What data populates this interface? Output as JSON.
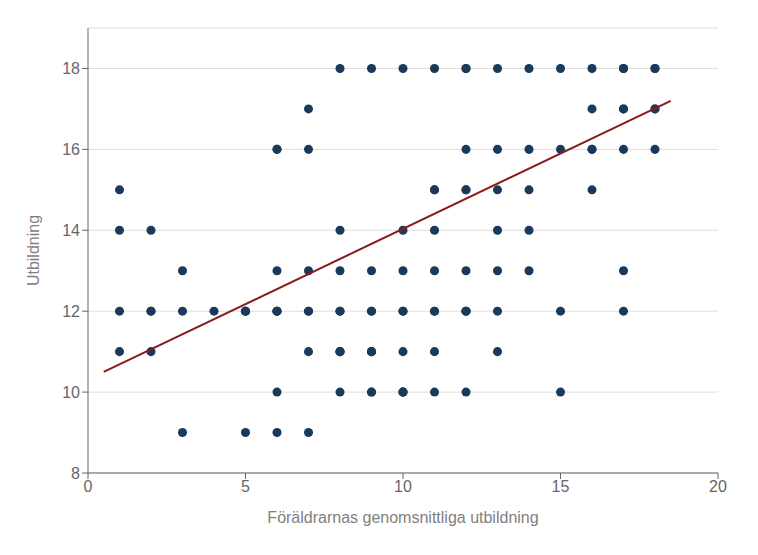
{
  "chart_data": {
    "type": "scatter",
    "xlabel": "Föräldrarnas genomsnittliga utbildning",
    "ylabel": "Utbildning",
    "xlim": [
      0,
      20
    ],
    "ylim": [
      8,
      19
    ],
    "xticks": [
      0,
      5,
      10,
      15,
      20
    ],
    "yticks": [
      8,
      10,
      12,
      14,
      16,
      18
    ],
    "grid": "y",
    "series": [
      {
        "type": "scatter",
        "marker": "circle",
        "color": "#1a3a5c",
        "x": [
          1,
          1,
          1,
          1,
          2,
          2,
          2,
          2,
          3,
          3,
          3,
          4,
          5,
          5,
          5,
          5,
          6,
          6,
          6,
          6,
          6,
          6,
          6,
          6,
          7,
          7,
          7,
          7,
          7,
          7,
          7,
          8,
          8,
          8,
          8,
          8,
          8,
          8,
          8,
          8,
          9,
          9,
          9,
          9,
          9,
          9,
          9,
          9,
          9,
          10,
          10,
          10,
          10,
          10,
          10,
          10,
          10,
          10,
          11,
          11,
          11,
          11,
          11,
          11,
          11,
          11,
          11,
          12,
          12,
          12,
          12,
          12,
          12,
          12,
          12,
          12,
          12,
          13,
          13,
          13,
          13,
          13,
          13,
          13,
          14,
          14,
          14,
          14,
          14,
          15,
          15,
          15,
          15,
          16,
          16,
          16,
          16,
          16,
          17,
          17,
          17,
          17,
          17,
          17,
          17,
          18,
          18,
          18,
          18,
          18
        ],
        "values": [
          11,
          12,
          14,
          15,
          11,
          12,
          12,
          14,
          9,
          12,
          13,
          12,
          9,
          12,
          12,
          12,
          9,
          10,
          12,
          12,
          12,
          13,
          16,
          16,
          9,
          11,
          12,
          12,
          13,
          16,
          17,
          10,
          11,
          11,
          11,
          12,
          12,
          14,
          18,
          13,
          10,
          10,
          11,
          11,
          11,
          12,
          12,
          13,
          18,
          10,
          10,
          10,
          11,
          12,
          12,
          13,
          14,
          18,
          10,
          11,
          12,
          12,
          13,
          14,
          15,
          15,
          18,
          10,
          12,
          12,
          12,
          13,
          15,
          15,
          16,
          18,
          18,
          11,
          12,
          13,
          14,
          15,
          16,
          18,
          13,
          14,
          15,
          16,
          18,
          10,
          12,
          16,
          18,
          15,
          16,
          16,
          17,
          18,
          12,
          13,
          16,
          17,
          17,
          18,
          18,
          16,
          17,
          17,
          18,
          18
        ]
      },
      {
        "type": "line",
        "line_style": "solid",
        "color": "#8b1a1a",
        "x": [
          0.5,
          18.5
        ],
        "values": [
          10.5,
          17.2
        ]
      }
    ]
  }
}
